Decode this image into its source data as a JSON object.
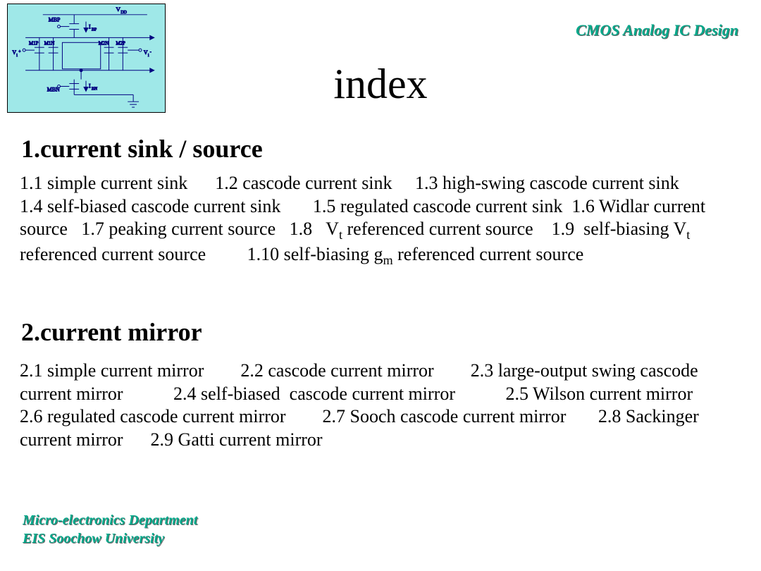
{
  "header": {
    "course_title": "CMOS Analog IC Design"
  },
  "title": "index",
  "section1": {
    "heading": "1.current sink / source",
    "body_html": "1.1 simple current sink &nbsp;&nbsp;&nbsp;&nbsp; 1.2 cascode current sink &nbsp;&nbsp;&nbsp; 1.3 high-swing cascode current sink &nbsp;&nbsp;&nbsp;&nbsp; 1.4 self-biased cascode current sink &nbsp;&nbsp;&nbsp;&nbsp;&nbsp; 1.5 regulated cascode current sink &nbsp;1.6 Widlar current source &nbsp; 1.7 peaking current source &nbsp; 1.8 &nbsp; V<sub>t</sub> referenced current source &nbsp;&nbsp; 1.9 &nbsp;self-biasing V<sub>t</sub> referenced current source &nbsp;&nbsp;&nbsp;&nbsp;&nbsp;&nbsp;&nbsp; 1.10 self-biasing g<sub>m</sub> referenced current source"
  },
  "section2": {
    "heading": "2.current mirror",
    "body_html": "2.1 simple current mirror &nbsp;&nbsp;&nbsp;&nbsp;&nbsp;&nbsp; 2.2 cascode current mirror &nbsp;&nbsp;&nbsp;&nbsp;&nbsp;&nbsp; 2.3 large-output swing cascode current mirror &nbsp;&nbsp;&nbsp;&nbsp;&nbsp;&nbsp;&nbsp;&nbsp;&nbsp; 2.4 self-biased &nbsp;cascode current mirror &nbsp;&nbsp;&nbsp;&nbsp;&nbsp;&nbsp;&nbsp;&nbsp;&nbsp; 2.5 Wilson current mirror &nbsp;&nbsp;&nbsp;&nbsp;&nbsp;&nbsp; 2.6 regulated cascode current mirror &nbsp;&nbsp;&nbsp;&nbsp;&nbsp;&nbsp; 2.7 Sooch cascode current mirror &nbsp;&nbsp;&nbsp;&nbsp;&nbsp; 2.8 Sackinger current mirror &nbsp;&nbsp;&nbsp;&nbsp; 2.9 Gatti current mirror"
  },
  "footer": {
    "line1": "Micro-electronics Department",
    "line2": "EIS Soochow University"
  },
  "circuit": {
    "bg_color": "#9fe8e8",
    "stroke": "#000080",
    "labels": {
      "vdd": "V_DD",
      "mbp": "MBP",
      "ibp": "I_BP",
      "m1p": "M1P",
      "m1n": "M1N",
      "m2n": "M2N",
      "m2p": "M2P",
      "vi_plus": "V_i+",
      "vi_minus": "V_i-",
      "mbn": "MBN",
      "ibn": "I_BN"
    }
  },
  "styling": {
    "page_bg": "#ffffff",
    "accent_color": "#00a88a",
    "body_font": "Times New Roman",
    "accent_font": "Comic Sans MS",
    "title_fontsize": 60,
    "heading_fontsize": 36,
    "body_fontsize": 26,
    "accent_fontsize": 22,
    "footer_fontsize": 20
  }
}
